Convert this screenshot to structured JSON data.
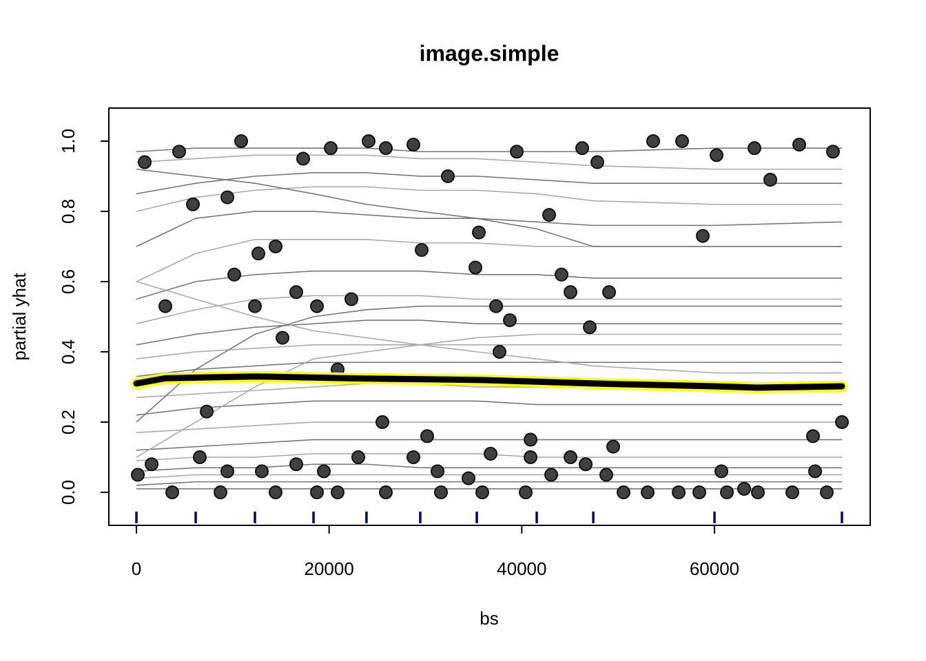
{
  "chart_data": {
    "type": "line",
    "title": "image.simple",
    "xlabel": "bs",
    "ylabel": "partial yhat",
    "xlim": [
      -2861,
      76163
    ],
    "ylim": [
      -0.094,
      1.094
    ],
    "xticks": [
      0,
      20000,
      40000,
      60000
    ],
    "yticks": [
      {
        "value": 0,
        "label": "0.0"
      },
      0.2,
      0.4,
      0.6,
      0.8,
      {
        "value": 1,
        "label": "1.0"
      }
    ],
    "x": [
      0,
      6150,
      12300,
      18380,
      23880,
      29460,
      35330,
      41550,
      47420,
      60000,
      73230
    ],
    "series": [
      {
        "color": "#777777",
        "values": [
          0.97,
          0.98,
          0.98,
          0.98,
          0.98,
          0.97,
          0.97,
          0.97,
          0.97,
          0.98,
          0.98
        ]
      },
      {
        "color": "#aaaaaa",
        "values": [
          0.94,
          0.95,
          0.96,
          0.96,
          0.96,
          0.95,
          0.95,
          0.94,
          0.93,
          0.92,
          0.92
        ]
      },
      {
        "color": "#777777",
        "values": [
          0.85,
          0.88,
          0.9,
          0.91,
          0.91,
          0.9,
          0.9,
          0.89,
          0.88,
          0.88,
          0.88
        ]
      },
      {
        "color": "#aaaaaa",
        "values": [
          0.8,
          0.84,
          0.86,
          0.87,
          0.87,
          0.86,
          0.86,
          0.85,
          0.83,
          0.82,
          0.82
        ]
      },
      {
        "color": "#777777",
        "values": [
          0.7,
          0.78,
          0.8,
          0.8,
          0.79,
          0.78,
          0.78,
          0.77,
          0.76,
          0.76,
          0.77
        ]
      },
      {
        "color": "#aaaaaa",
        "values": [
          0.6,
          0.68,
          0.72,
          0.72,
          0.72,
          0.71,
          0.71,
          0.7,
          0.7,
          0.7,
          0.7
        ]
      },
      {
        "color": "#777777",
        "values": [
          0.55,
          0.6,
          0.62,
          0.63,
          0.63,
          0.63,
          0.62,
          0.62,
          0.61,
          0.61,
          0.61
        ]
      },
      {
        "color": "#aaaaaa",
        "values": [
          0.48,
          0.52,
          0.55,
          0.56,
          0.56,
          0.56,
          0.55,
          0.55,
          0.55,
          0.55,
          0.55
        ]
      },
      {
        "color": "#777777",
        "values": [
          0.42,
          0.45,
          0.47,
          0.48,
          0.49,
          0.49,
          0.48,
          0.48,
          0.48,
          0.48,
          0.48
        ]
      },
      {
        "color": "#aaaaaa",
        "values": [
          0.38,
          0.4,
          0.41,
          0.42,
          0.42,
          0.42,
          0.42,
          0.42,
          0.42,
          0.42,
          0.42
        ]
      },
      {
        "color": "#777777",
        "values": [
          0.33,
          0.35,
          0.36,
          0.37,
          0.37,
          0.37,
          0.37,
          0.37,
          0.37,
          0.37,
          0.37
        ]
      },
      {
        "color": "#aaaaaa",
        "values": [
          0.27,
          0.28,
          0.29,
          0.3,
          0.31,
          0.31,
          0.3,
          0.3,
          0.3,
          0.3,
          0.3
        ]
      },
      {
        "color": "#777777",
        "values": [
          0.22,
          0.24,
          0.25,
          0.26,
          0.26,
          0.26,
          0.26,
          0.25,
          0.25,
          0.25,
          0.25
        ]
      },
      {
        "color": "#aaaaaa",
        "values": [
          0.17,
          0.18,
          0.19,
          0.2,
          0.2,
          0.2,
          0.2,
          0.2,
          0.2,
          0.2,
          0.2
        ]
      },
      {
        "color": "#777777",
        "values": [
          0.12,
          0.13,
          0.14,
          0.15,
          0.15,
          0.15,
          0.15,
          0.15,
          0.15,
          0.15,
          0.15
        ]
      },
      {
        "color": "#aaaaaa",
        "values": [
          0.09,
          0.1,
          0.1,
          0.11,
          0.11,
          0.11,
          0.11,
          0.1,
          0.1,
          0.1,
          0.1
        ]
      },
      {
        "color": "#777777",
        "values": [
          0.06,
          0.07,
          0.07,
          0.08,
          0.08,
          0.07,
          0.07,
          0.07,
          0.07,
          0.07,
          0.07
        ]
      },
      {
        "color": "#aaaaaa",
        "values": [
          0.04,
          0.05,
          0.05,
          0.05,
          0.05,
          0.05,
          0.05,
          0.05,
          0.05,
          0.05,
          0.05
        ]
      },
      {
        "color": "#777777",
        "values": [
          0.02,
          0.03,
          0.03,
          0.03,
          0.03,
          0.03,
          0.03,
          0.03,
          0.03,
          0.03,
          0.03
        ]
      },
      {
        "color": "#777777",
        "values": [
          0.01,
          0.01,
          0.01,
          0.01,
          0.01,
          0.01,
          0.01,
          0.01,
          0.01,
          0.01,
          0.01
        ]
      },
      {
        "color": "#aaaaaa",
        "values": [
          0.6,
          0.55,
          0.5,
          0.46,
          0.44,
          0.42,
          0.4,
          0.38,
          0.36,
          0.34,
          0.34
        ]
      },
      {
        "color": "#777777",
        "values": [
          0.2,
          0.35,
          0.45,
          0.5,
          0.52,
          0.53,
          0.53,
          0.53,
          0.53,
          0.53,
          0.53
        ]
      },
      {
        "color": "#aaaaaa",
        "values": [
          0.1,
          0.2,
          0.3,
          0.38,
          0.4,
          0.42,
          0.44,
          0.45,
          0.45,
          0.45,
          0.45
        ]
      },
      {
        "color": "#777777",
        "values": [
          0.92,
          0.9,
          0.88,
          0.85,
          0.82,
          0.8,
          0.78,
          0.75,
          0.7,
          0.7,
          0.7
        ]
      }
    ],
    "mean": {
      "color": "#000000",
      "outline": "#ffff00",
      "x": [
        0,
        3000,
        12300,
        23700,
        35900,
        47400,
        60000,
        64500,
        73230
      ],
      "values": [
        0.31,
        0.325,
        0.33,
        0.324,
        0.32,
        0.31,
        0.302,
        0.298,
        0.302
      ]
    },
    "points": {
      "color": "#404040",
      "x": [
        143,
        858,
        3004,
        4434,
        5865,
        9440,
        10155,
        10870,
        12300,
        12658,
        14446,
        15161,
        16591,
        17306,
        18737,
        20167,
        20882,
        22313,
        24100,
        25531,
        25888,
        28749,
        29607,
        30179,
        32324,
        35185,
        35542,
        37330,
        37688,
        38761,
        39476,
        40906,
        42837,
        44124,
        45054,
        46270,
        47057,
        47844,
        49059,
        49489,
        53637,
        56640,
        58786,
        60216,
        64149,
        65794,
        68798,
        70228,
        72302,
        73232,
        1573,
        6579,
        7295,
        9440,
        13016,
        16591,
        19452,
        23028,
        25888,
        28749,
        31252,
        34470,
        36759,
        40906,
        43052,
        45054,
        46627,
        48773,
        50562,
        53065,
        56283,
        60717,
        61289,
        63077,
        64508,
        68083,
        70443,
        71659,
        3719,
        8725,
        14446,
        18737,
        20882,
        31610,
        35900,
        40406,
        58428
      ],
      "y": [
        0.05,
        0.94,
        0.53,
        0.97,
        0.82,
        0.84,
        0.62,
        1.0,
        0.53,
        0.68,
        0.7,
        0.44,
        0.57,
        0.95,
        0.53,
        0.98,
        0.35,
        0.55,
        1.0,
        0.2,
        0.98,
        0.99,
        0.69,
        0.16,
        0.9,
        0.64,
        0.74,
        0.53,
        0.4,
        0.49,
        0.97,
        0.15,
        0.79,
        0.62,
        0.57,
        0.98,
        0.47,
        0.94,
        0.57,
        0.13,
        1.0,
        1.0,
        0.73,
        0.96,
        0.98,
        0.89,
        0.99,
        0.16,
        0.97,
        0.2,
        0.08,
        0.1,
        0.23,
        0.06,
        0.06,
        0.08,
        0.06,
        0.1,
        0.0,
        0.1,
        0.06,
        0.04,
        0.11,
        0.1,
        0.05,
        0.1,
        0.08,
        0.05,
        0.0,
        0.0,
        0.0,
        0.06,
        0.0,
        0.01,
        0.0,
        0.0,
        0.06,
        0.0,
        0.0,
        0.0,
        0.0,
        0.0,
        0.0,
        0.0,
        0.0,
        0.0,
        0.0
      ]
    },
    "rug": {
      "color": "#000080",
      "values": [
        0,
        6150,
        12300,
        18380,
        23880,
        29460,
        35330,
        41550,
        47420,
        60000,
        73230
      ]
    }
  }
}
